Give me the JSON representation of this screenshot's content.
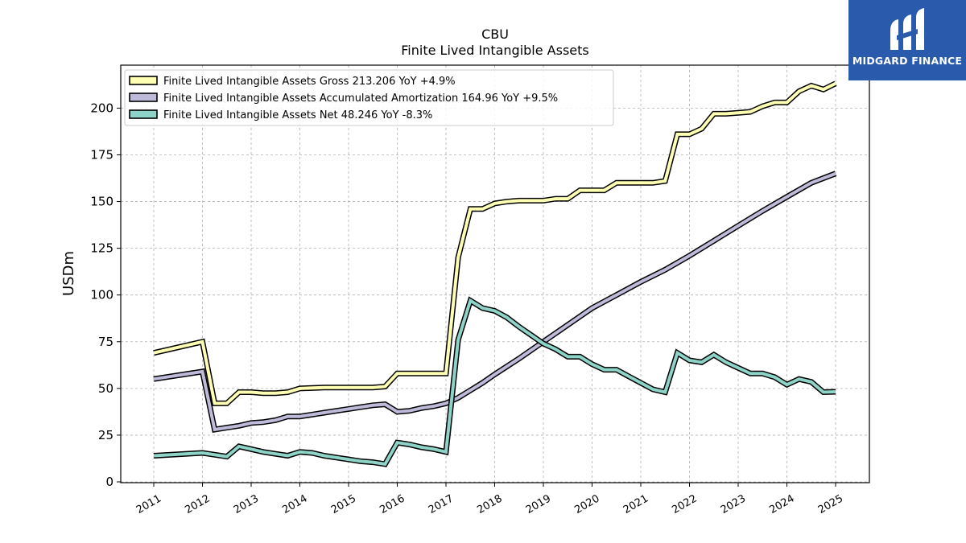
{
  "logo": {
    "text": "MIDGARD FINANCE"
  },
  "chart_data": {
    "type": "line",
    "title": "CBU",
    "subtitle": "Finite Lived Intangible Assets",
    "ylabel": "USDm",
    "xlabel": "",
    "ylim": [
      0,
      220
    ],
    "xlim": [
      2010.3,
      2025.7
    ],
    "yticks": [
      0,
      25,
      50,
      75,
      100,
      125,
      150,
      175,
      200
    ],
    "xticks": [
      "2011",
      "2012",
      "2013",
      "2014",
      "2015",
      "2016",
      "2017",
      "2018",
      "2019",
      "2020",
      "2021",
      "2022",
      "2023",
      "2024",
      "2025"
    ],
    "grid": true,
    "legend_position": "top-left",
    "series": [
      {
        "name": "Finite Lived Intangible Assets Gross",
        "legend_label": "Finite Lived Intangible Assets Gross  213.206 YoY +4.9%",
        "color": "#ffffb3",
        "points": [
          [
            2011.0,
            69
          ],
          [
            2012.0,
            75
          ],
          [
            2012.25,
            42
          ],
          [
            2012.5,
            42
          ],
          [
            2012.75,
            48
          ],
          [
            2013.0,
            48
          ],
          [
            2013.25,
            47.5
          ],
          [
            2013.5,
            47.5
          ],
          [
            2013.75,
            48
          ],
          [
            2014.0,
            50
          ],
          [
            2014.5,
            50.5
          ],
          [
            2015.0,
            50.5
          ],
          [
            2015.5,
            50.5
          ],
          [
            2015.75,
            51
          ],
          [
            2016.0,
            58
          ],
          [
            2016.25,
            58
          ],
          [
            2016.5,
            58
          ],
          [
            2016.75,
            58
          ],
          [
            2017.0,
            58
          ],
          [
            2017.25,
            120
          ],
          [
            2017.5,
            146
          ],
          [
            2017.75,
            146
          ],
          [
            2018.0,
            149
          ],
          [
            2018.25,
            150
          ],
          [
            2018.5,
            150.5
          ],
          [
            2018.75,
            150.5
          ],
          [
            2019.0,
            150.5
          ],
          [
            2019.25,
            151.5
          ],
          [
            2019.5,
            151.5
          ],
          [
            2019.75,
            156
          ],
          [
            2020.0,
            156
          ],
          [
            2020.25,
            156
          ],
          [
            2020.5,
            160
          ],
          [
            2020.75,
            160
          ],
          [
            2021.0,
            160
          ],
          [
            2021.25,
            160
          ],
          [
            2021.5,
            161
          ],
          [
            2021.75,
            186
          ],
          [
            2022.0,
            186
          ],
          [
            2022.25,
            189
          ],
          [
            2022.5,
            197
          ],
          [
            2022.75,
            197
          ],
          [
            2023.0,
            197.5
          ],
          [
            2023.25,
            198
          ],
          [
            2023.5,
            201
          ],
          [
            2023.75,
            203
          ],
          [
            2024.0,
            203
          ],
          [
            2024.25,
            209
          ],
          [
            2024.5,
            212
          ],
          [
            2024.75,
            210
          ],
          [
            2025.0,
            213.2
          ]
        ]
      },
      {
        "name": "Finite Lived Intangible Assets Accumulated Amortization",
        "legend_label": "Finite Lived Intangible Assets Accumulated Amortization  164.96 YoY +9.5%",
        "color": "#bebada",
        "points": [
          [
            2011.0,
            55
          ],
          [
            2012.0,
            59
          ],
          [
            2012.25,
            28
          ],
          [
            2012.5,
            29
          ],
          [
            2012.75,
            30
          ],
          [
            2013.0,
            31.5
          ],
          [
            2013.25,
            32
          ],
          [
            2013.5,
            33
          ],
          [
            2013.75,
            35
          ],
          [
            2014.0,
            35
          ],
          [
            2014.25,
            36
          ],
          [
            2014.5,
            37
          ],
          [
            2014.75,
            38
          ],
          [
            2015.0,
            39
          ],
          [
            2015.25,
            40
          ],
          [
            2015.5,
            41
          ],
          [
            2015.75,
            41.5
          ],
          [
            2016.0,
            37.5
          ],
          [
            2016.25,
            38
          ],
          [
            2016.5,
            39.5
          ],
          [
            2016.75,
            40.5
          ],
          [
            2017.0,
            42
          ],
          [
            2017.25,
            45
          ],
          [
            2017.5,
            49
          ],
          [
            2017.75,
            53
          ],
          [
            2018.0,
            57.5
          ],
          [
            2018.5,
            66
          ],
          [
            2019.0,
            75
          ],
          [
            2019.5,
            84
          ],
          [
            2020.0,
            93
          ],
          [
            2020.5,
            100
          ],
          [
            2021.0,
            107
          ],
          [
            2021.5,
            113.5
          ],
          [
            2022.0,
            121
          ],
          [
            2022.5,
            129
          ],
          [
            2023.0,
            137
          ],
          [
            2023.5,
            145
          ],
          [
            2024.0,
            152.5
          ],
          [
            2024.5,
            160
          ],
          [
            2025.0,
            165
          ]
        ]
      },
      {
        "name": "Finite Lived Intangible Assets Net",
        "legend_label": "Finite Lived Intangible Assets Net  48.246 YoY -8.3%",
        "color": "#8dd3c7",
        "points": [
          [
            2011.0,
            14
          ],
          [
            2012.0,
            15.5
          ],
          [
            2012.5,
            13.5
          ],
          [
            2012.75,
            19
          ],
          [
            2013.0,
            17.5
          ],
          [
            2013.25,
            16
          ],
          [
            2013.5,
            15
          ],
          [
            2013.75,
            14
          ],
          [
            2014.0,
            16
          ],
          [
            2014.25,
            15.5
          ],
          [
            2014.5,
            14
          ],
          [
            2014.75,
            13
          ],
          [
            2015.0,
            12
          ],
          [
            2015.25,
            11
          ],
          [
            2015.5,
            10.5
          ],
          [
            2015.75,
            9.5
          ],
          [
            2016.0,
            21
          ],
          [
            2016.25,
            20
          ],
          [
            2016.5,
            18.5
          ],
          [
            2016.75,
            17.5
          ],
          [
            2017.0,
            16
          ],
          [
            2017.25,
            76
          ],
          [
            2017.5,
            97
          ],
          [
            2017.75,
            93
          ],
          [
            2018.0,
            91.5
          ],
          [
            2018.25,
            88
          ],
          [
            2018.5,
            83
          ],
          [
            2018.75,
            78.5
          ],
          [
            2019.0,
            74
          ],
          [
            2019.25,
            71
          ],
          [
            2019.5,
            67
          ],
          [
            2019.75,
            67
          ],
          [
            2020.0,
            63
          ],
          [
            2020.25,
            60
          ],
          [
            2020.5,
            60
          ],
          [
            2020.75,
            56.5
          ],
          [
            2021.0,
            53
          ],
          [
            2021.25,
            49.5
          ],
          [
            2021.5,
            48
          ],
          [
            2021.75,
            69
          ],
          [
            2022.0,
            65
          ],
          [
            2022.25,
            64
          ],
          [
            2022.5,
            68
          ],
          [
            2022.75,
            64
          ],
          [
            2023.0,
            61
          ],
          [
            2023.25,
            58
          ],
          [
            2023.5,
            58
          ],
          [
            2023.75,
            56
          ],
          [
            2024.0,
            52
          ],
          [
            2024.25,
            55
          ],
          [
            2024.5,
            53.5
          ],
          [
            2024.75,
            48
          ],
          [
            2025.0,
            48.2
          ]
        ]
      }
    ]
  }
}
